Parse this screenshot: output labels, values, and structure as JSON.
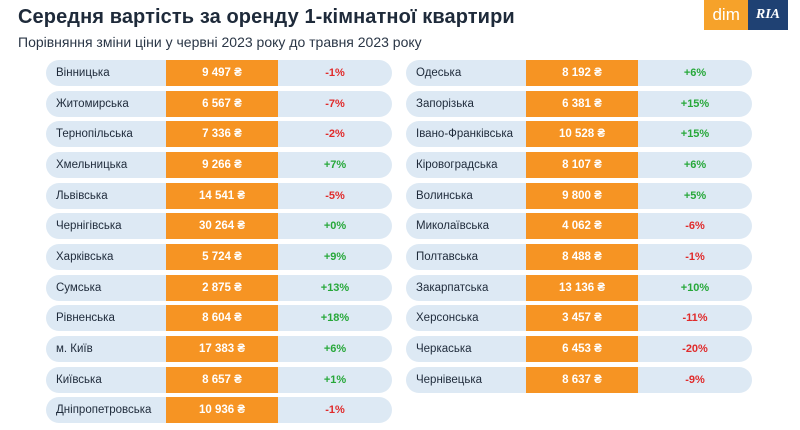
{
  "header": {
    "title": "Середня вартість за оренду 1-кімнатної квартири",
    "subtitle": "Порівняння зміни ціни у червні 2023 року до травня 2023 року"
  },
  "logo": {
    "dim": "dim",
    "ria": "RIA"
  },
  "colors": {
    "price_bg": "#f69423",
    "row_bg": "#dde9f4",
    "negative": "#e02b2b",
    "positive": "#27a83a"
  },
  "chart_data": {
    "type": "table",
    "columns": [
      "region",
      "price",
      "change"
    ],
    "rows": [
      {
        "region": "Вінницька",
        "price": "9 497 ₴",
        "change": "-1%"
      },
      {
        "region": "Житомирська",
        "price": "6 567 ₴",
        "change": "-7%"
      },
      {
        "region": "Тернопільська",
        "price": "7 336 ₴",
        "change": "-2%"
      },
      {
        "region": "Хмельницька",
        "price": "9 266 ₴",
        "change": "+7%"
      },
      {
        "region": "Львівська",
        "price": "14 541 ₴",
        "change": "-5%"
      },
      {
        "region": "Чернігівська",
        "price": "30 264 ₴",
        "change": "+0%"
      },
      {
        "region": "Харківська",
        "price": "5 724 ₴",
        "change": "+9%"
      },
      {
        "region": "Сумська",
        "price": "2 875 ₴",
        "change": "+13%"
      },
      {
        "region": "Рівненська",
        "price": "8 604 ₴",
        "change": "+18%"
      },
      {
        "region": "м. Київ",
        "price": "17 383 ₴",
        "change": "+6%"
      },
      {
        "region": "Київська",
        "price": "8 657 ₴",
        "change": "+1%"
      },
      {
        "region": "Дніпропетровська",
        "price": "10 936 ₴",
        "change": "-1%"
      },
      {
        "region": "Одеська",
        "price": "8 192 ₴",
        "change": "+6%"
      },
      {
        "region": "Запорізька",
        "price": "6 381 ₴",
        "change": "+15%"
      },
      {
        "region": "Івано-Франківська",
        "price": "10 528 ₴",
        "change": "+15%"
      },
      {
        "region": "Кіровоградська",
        "price": "8 107 ₴",
        "change": "+6%"
      },
      {
        "region": "Волинська",
        "price": "9 800 ₴",
        "change": "+5%"
      },
      {
        "region": "Миколаївська",
        "price": "4 062 ₴",
        "change": "-6%"
      },
      {
        "region": "Полтавська",
        "price": "8 488 ₴",
        "change": "-1%"
      },
      {
        "region": "Закарпатська",
        "price": "13 136 ₴",
        "change": "+10%"
      },
      {
        "region": "Херсонська",
        "price": "3 457 ₴",
        "change": "-11%"
      },
      {
        "region": "Черкаська",
        "price": "6 453 ₴",
        "change": "-20%"
      },
      {
        "region": "Чернівецька",
        "price": "8 637 ₴",
        "change": "-9%"
      }
    ]
  }
}
